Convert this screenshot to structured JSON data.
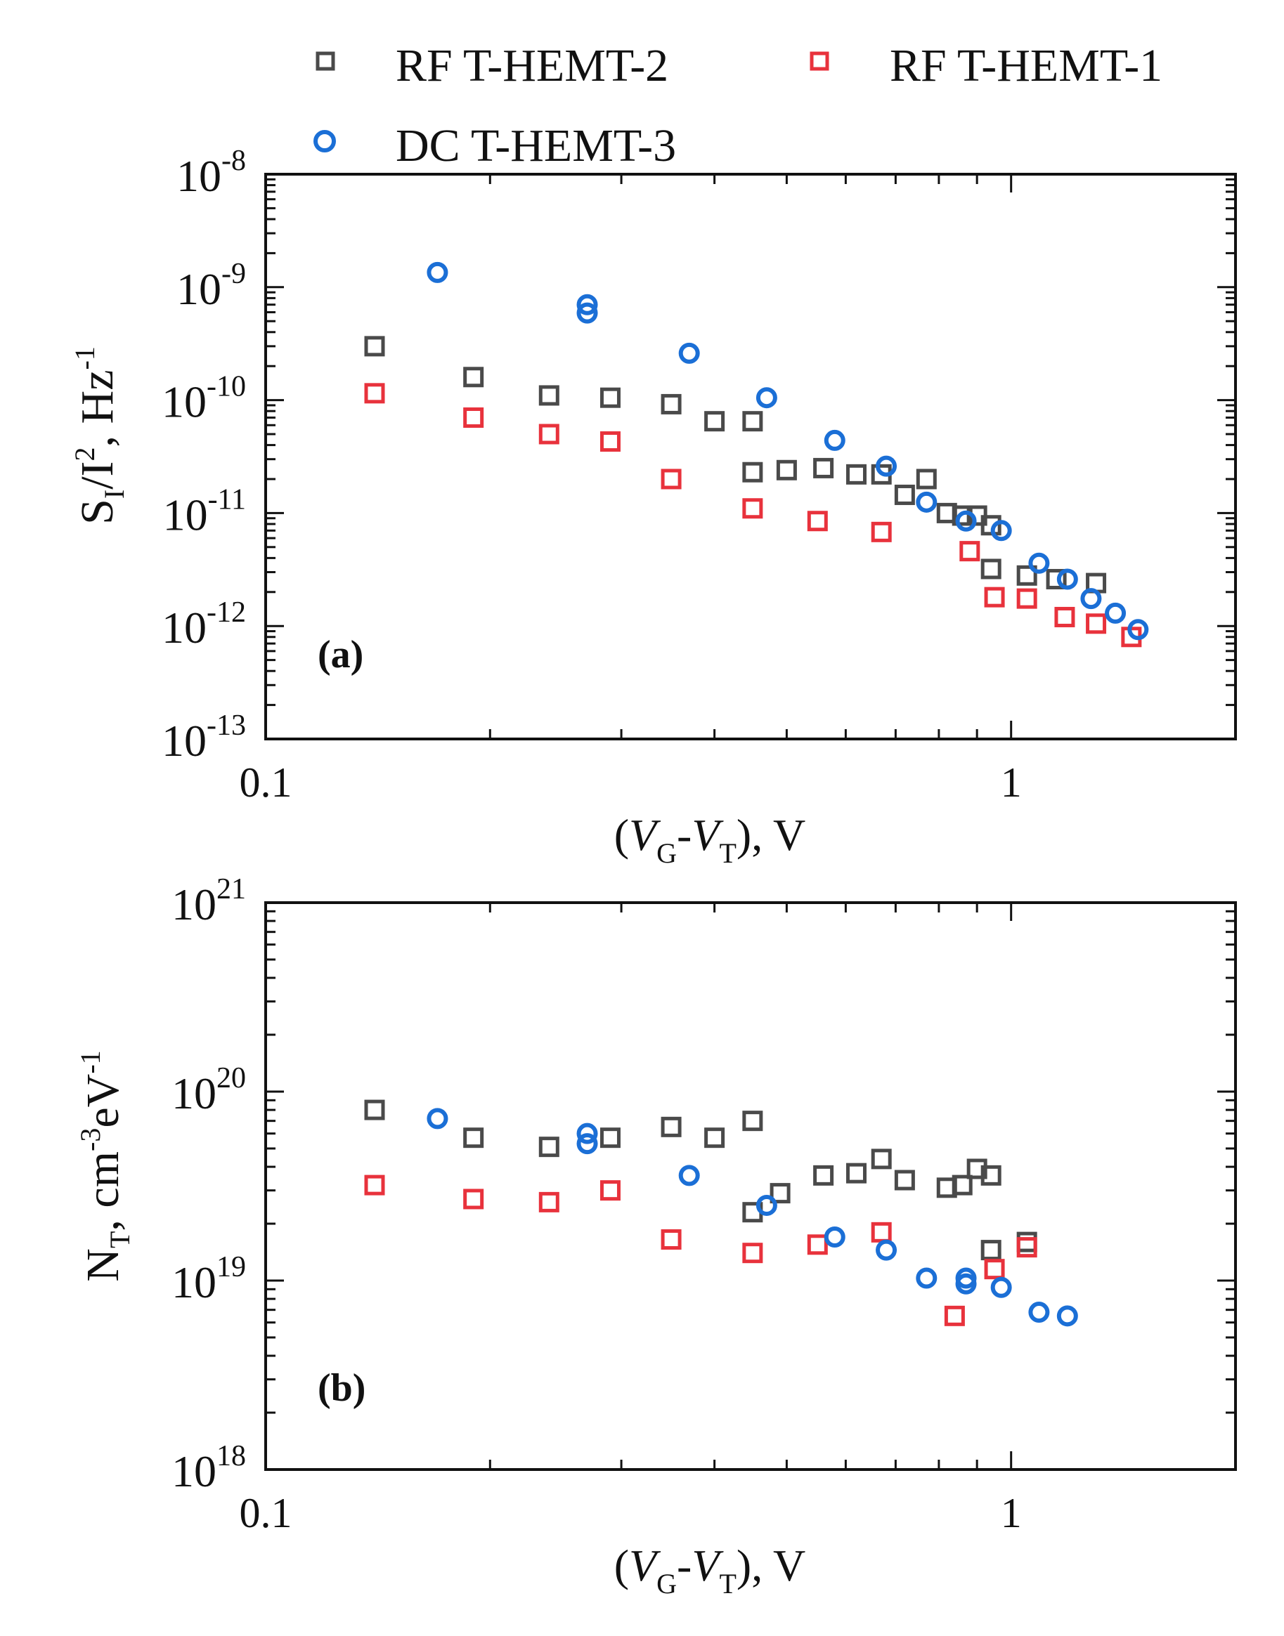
{
  "legend": {
    "items": [
      {
        "label": "RF T-HEMT-2",
        "series": "rf2"
      },
      {
        "label": "RF T-HEMT-1",
        "series": "rf1"
      },
      {
        "label": "DC T-HEMT-3",
        "series": "dc3"
      }
    ]
  },
  "colors": {
    "rf2": "#4a4a4a",
    "rf1": "#e8323c",
    "dc3": "#1b6fd6",
    "axis": "#111111"
  },
  "chart_data": [
    {
      "id": "a",
      "type": "scatter",
      "panel_label": "(a)",
      "xscale": "log",
      "yscale": "log",
      "xlim": [
        0.1,
        2.0
      ],
      "ylim": [
        1e-13,
        1e-08
      ],
      "xticks": [
        {
          "value": 0.1,
          "label": "0.1"
        },
        {
          "value": 1,
          "label": "1"
        }
      ],
      "xlabel": {
        "open": "(",
        "v1": "V",
        "s1": "G",
        "dash": "-",
        "v2": "V",
        "s2": "T",
        "close": "), V"
      },
      "ylabel": {
        "s": "S",
        "sub": "I",
        "slash": "/I",
        "sup": "2",
        "unit": ", Hz",
        "unitsup": "-1"
      },
      "yticks": [
        {
          "value": 1e-08,
          "base": "10",
          "exp": "-8"
        },
        {
          "value": 1e-09,
          "base": "10",
          "exp": "-9"
        },
        {
          "value": 1e-10,
          "base": "10",
          "exp": "-10"
        },
        {
          "value": 1e-11,
          "base": "10",
          "exp": "-11"
        },
        {
          "value": 1e-12,
          "base": "10",
          "exp": "-12"
        },
        {
          "value": 1e-13,
          "base": "10",
          "exp": "-13"
        }
      ],
      "series": [
        {
          "name": "RF T-HEMT-2",
          "key": "rf2",
          "marker": "square",
          "points": [
            [
              0.14,
              3e-10
            ],
            [
              0.19,
              1.6e-10
            ],
            [
              0.24,
              1.1e-10
            ],
            [
              0.29,
              1.05e-10
            ],
            [
              0.35,
              9.2e-11
            ],
            [
              0.4,
              6.5e-11
            ],
            [
              0.45,
              6.5e-11
            ],
            [
              0.45,
              2.3e-11
            ],
            [
              0.5,
              2.4e-11
            ],
            [
              0.56,
              2.5e-11
            ],
            [
              0.62,
              2.2e-11
            ],
            [
              0.67,
              2.2e-11
            ],
            [
              0.72,
              1.45e-11
            ],
            [
              0.77,
              2e-11
            ],
            [
              0.82,
              1e-11
            ],
            [
              0.86,
              9.5e-12
            ],
            [
              0.9,
              9.5e-12
            ],
            [
              0.94,
              3.2e-12
            ],
            [
              0.94,
              7.8e-12
            ],
            [
              1.05,
              2.8e-12
            ],
            [
              1.15,
              2.6e-12
            ],
            [
              1.3,
              2.4e-12
            ]
          ]
        },
        {
          "name": "RF T-HEMT-1",
          "key": "rf1",
          "marker": "square",
          "points": [
            [
              0.14,
              1.15e-10
            ],
            [
              0.19,
              7e-11
            ],
            [
              0.24,
              5e-11
            ],
            [
              0.29,
              4.3e-11
            ],
            [
              0.35,
              2e-11
            ],
            [
              0.45,
              1.1e-11
            ],
            [
              0.55,
              8.5e-12
            ],
            [
              0.67,
              6.8e-12
            ],
            [
              0.88,
              4.6e-12
            ],
            [
              0.95,
              1.8e-12
            ],
            [
              1.05,
              1.75e-12
            ],
            [
              1.18,
              1.2e-12
            ],
            [
              1.3,
              1.05e-12
            ],
            [
              1.45,
              8e-13
            ]
          ]
        },
        {
          "name": "DC T-HEMT-3",
          "key": "dc3",
          "marker": "circle",
          "points": [
            [
              0.17,
              1.35e-09
            ],
            [
              0.27,
              7e-10
            ],
            [
              0.27,
              5.9e-10
            ],
            [
              0.37,
              2.6e-10
            ],
            [
              0.47,
              1.05e-10
            ],
            [
              0.58,
              4.4e-11
            ],
            [
              0.68,
              2.6e-11
            ],
            [
              0.77,
              1.25e-11
            ],
            [
              0.87,
              8.5e-12
            ],
            [
              0.97,
              7e-12
            ],
            [
              1.09,
              3.6e-12
            ],
            [
              1.19,
              2.6e-12
            ],
            [
              1.28,
              1.75e-12
            ],
            [
              1.38,
              1.3e-12
            ],
            [
              1.48,
              9.3e-13
            ]
          ]
        }
      ]
    },
    {
      "id": "b",
      "type": "scatter",
      "panel_label": "(b)",
      "xscale": "log",
      "yscale": "log",
      "xlim": [
        0.1,
        2.0
      ],
      "ylim": [
        1e+18,
        1e+21
      ],
      "xticks": [
        {
          "value": 0.1,
          "label": "0.1"
        },
        {
          "value": 1,
          "label": "1"
        }
      ],
      "xlabel": {
        "open": "(",
        "v1": "V",
        "s1": "G",
        "dash": "-",
        "v2": "V",
        "s2": "T",
        "close": "), V"
      },
      "ylabel": {
        "n": "N",
        "sub": "T",
        "unit": ", cm",
        "sup1": "-3",
        "ev": "eV",
        "sup2": "-1"
      },
      "yticks": [
        {
          "value": 1e+21,
          "base": "10",
          "exp": "21"
        },
        {
          "value": 1e+20,
          "base": "10",
          "exp": "20"
        },
        {
          "value": 1e+19,
          "base": "10",
          "exp": "19"
        },
        {
          "value": 1e+18,
          "base": "10",
          "exp": "18"
        }
      ],
      "series": [
        {
          "name": "RF T-HEMT-2",
          "key": "rf2",
          "marker": "square",
          "points": [
            [
              0.14,
              8e+19
            ],
            [
              0.19,
              5.7e+19
            ],
            [
              0.24,
              5.1e+19
            ],
            [
              0.29,
              5.7e+19
            ],
            [
              0.35,
              6.5e+19
            ],
            [
              0.4,
              5.7e+19
            ],
            [
              0.45,
              7e+19
            ],
            [
              0.45,
              2.3e+19
            ],
            [
              0.49,
              2.9e+19
            ],
            [
              0.56,
              3.6e+19
            ],
            [
              0.62,
              3.7e+19
            ],
            [
              0.67,
              4.4e+19
            ],
            [
              0.72,
              3.4e+19
            ],
            [
              0.82,
              3.1e+19
            ],
            [
              0.86,
              3.2e+19
            ],
            [
              0.9,
              3.9e+19
            ],
            [
              0.94,
              3.6e+19
            ],
            [
              0.94,
              1.45e+19
            ],
            [
              1.05,
              1.6e+19
            ]
          ]
        },
        {
          "name": "RF T-HEMT-1",
          "key": "rf1",
          "marker": "square",
          "points": [
            [
              0.14,
              3.2e+19
            ],
            [
              0.19,
              2.7e+19
            ],
            [
              0.24,
              2.6e+19
            ],
            [
              0.29,
              3e+19
            ],
            [
              0.35,
              1.65e+19
            ],
            [
              0.45,
              1.4e+19
            ],
            [
              0.55,
              1.55e+19
            ],
            [
              0.67,
              1.8e+19
            ],
            [
              0.84,
              6.5e+18
            ],
            [
              0.95,
              1.15e+19
            ],
            [
              1.05,
              1.5e+19
            ]
          ]
        },
        {
          "name": "DC T-HEMT-3",
          "key": "dc3",
          "marker": "circle",
          "points": [
            [
              0.17,
              7.2e+19
            ],
            [
              0.27,
              6e+19
            ],
            [
              0.27,
              5.3e+19
            ],
            [
              0.37,
              3.6e+19
            ],
            [
              0.47,
              2.5e+19
            ],
            [
              0.58,
              1.7e+19
            ],
            [
              0.68,
              1.45e+19
            ],
            [
              0.77,
              1.03e+19
            ],
            [
              0.87,
              1.03e+19
            ],
            [
              0.87,
              9.6e+18
            ],
            [
              0.97,
              9.2e+18
            ],
            [
              1.09,
              6.8e+18
            ],
            [
              1.19,
              6.5e+18
            ]
          ]
        }
      ]
    }
  ]
}
